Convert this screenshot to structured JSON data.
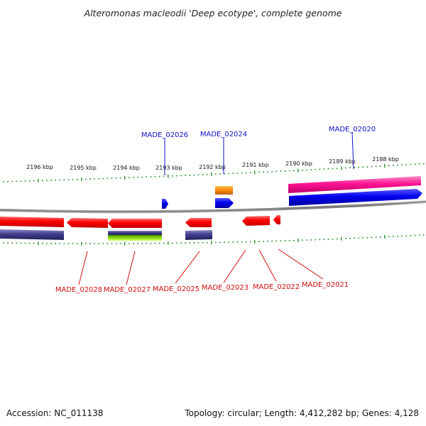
{
  "title": "Alteromonas macleodii 'Deep ecotype', complete genome",
  "scale_labels": [
    "2196 kbp",
    "2195 kbp",
    "2194 kbp",
    "2193 kbp",
    "2192 kbp",
    "2191 kbp",
    "2190 kbp",
    "2189 kbp",
    "2188 kbp"
  ],
  "genes_forward": [
    "MADE_02026",
    "MADE_02024",
    "MADE_02020"
  ],
  "genes_reverse": [
    "MADE_02028",
    "MADE_02027",
    "MADE_02025",
    "MADE_02023",
    "MADE_02022",
    "MADE_02021"
  ],
  "footer": {
    "accession": "Accession: NC_011138",
    "summary": "Topology: circular; Length: 4,412,282 bp; Genes: 4,128"
  },
  "colors": {
    "cds": "#ff0000",
    "cds_forward": "#0000ee",
    "rna": "#ff8c00",
    "gene_reverse": "#3f3c8c",
    "gene_forward_long": "#ff1493",
    "misc_feature": "#7ed300",
    "tick": "#1a8a1a",
    "backbone": "#888888",
    "label_forward": "#1010c8",
    "label_reverse": "#d01010"
  }
}
